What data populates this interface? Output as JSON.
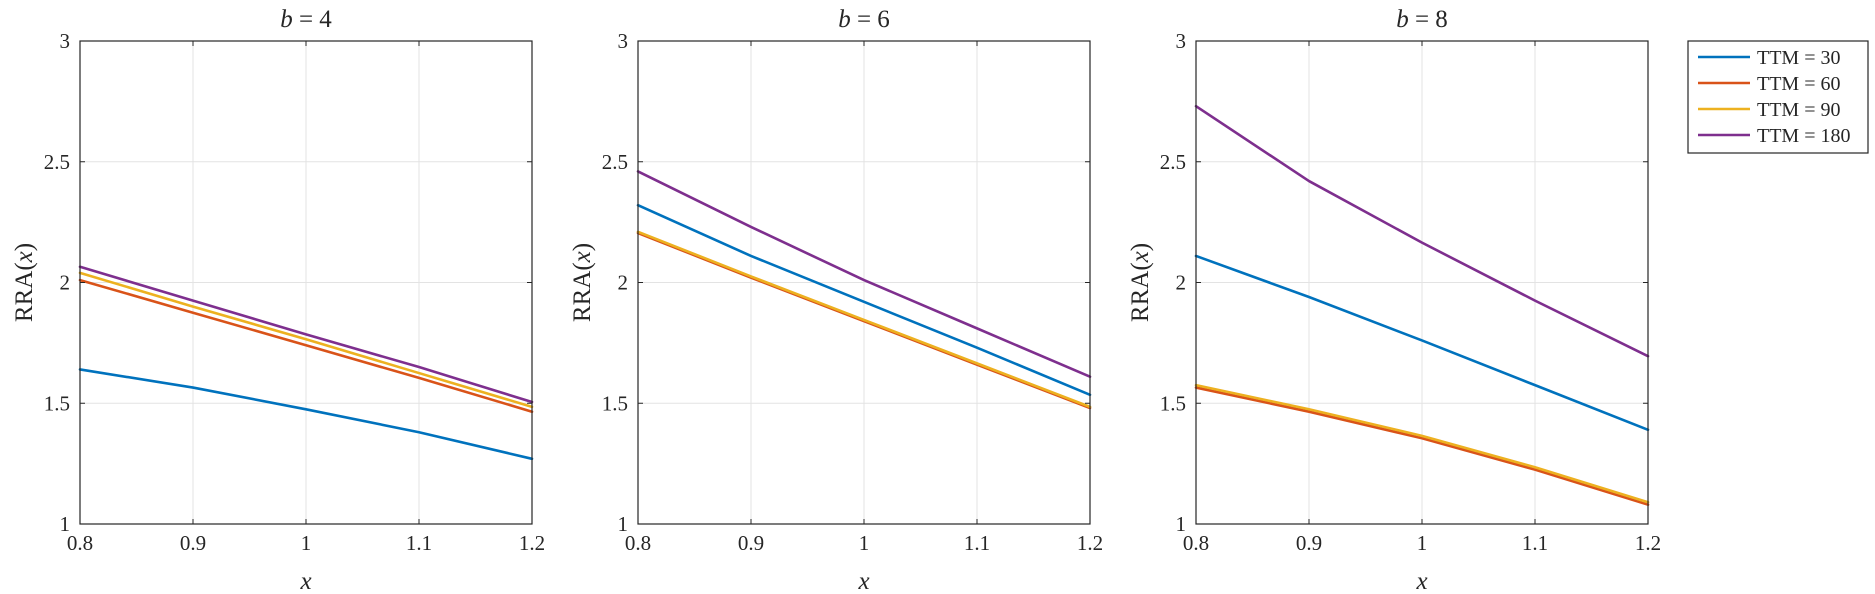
{
  "chart_data": [
    {
      "type": "line",
      "title": "b = 4",
      "title_var": "b",
      "title_eq": " = ",
      "title_val": "4",
      "xlabel": "x",
      "ylabel": "RRA(x)",
      "ylabel_fn": "RRA(",
      "ylabel_var": "x",
      "ylabel_close": ")",
      "xlim": [
        0.8,
        1.2
      ],
      "ylim": [
        1,
        3
      ],
      "xticks": [
        "0.8",
        "0.9",
        "1",
        "1.1",
        "1.2"
      ],
      "yticks": [
        "1",
        "1.5",
        "2",
        "2.5",
        "3"
      ],
      "grid": true,
      "x": [
        0.8,
        0.9,
        1.0,
        1.1,
        1.2
      ],
      "series": [
        {
          "name": "TTM = 30",
          "color": "#0072BD",
          "values": [
            1.64,
            1.565,
            1.475,
            1.38,
            1.27
          ]
        },
        {
          "name": "TTM = 60",
          "color": "#D95319",
          "values": [
            2.01,
            1.875,
            1.74,
            1.605,
            1.465
          ]
        },
        {
          "name": "TTM = 90",
          "color": "#EDB120",
          "values": [
            2.04,
            1.9,
            1.765,
            1.625,
            1.485
          ]
        },
        {
          "name": "TTM = 180",
          "color": "#7E2F8E",
          "values": [
            2.065,
            1.925,
            1.785,
            1.65,
            1.505
          ]
        }
      ]
    },
    {
      "type": "line",
      "title": "b = 6",
      "title_var": "b",
      "title_eq": " = ",
      "title_val": "6",
      "xlabel": "x",
      "ylabel": "RRA(x)",
      "ylabel_fn": "RRA(",
      "ylabel_var": "x",
      "ylabel_close": ")",
      "xlim": [
        0.8,
        1.2
      ],
      "ylim": [
        1,
        3
      ],
      "xticks": [
        "0.8",
        "0.9",
        "1",
        "1.1",
        "1.2"
      ],
      "yticks": [
        "1",
        "1.5",
        "2",
        "2.5",
        "3"
      ],
      "grid": true,
      "x": [
        0.8,
        0.9,
        1.0,
        1.1,
        1.2
      ],
      "series": [
        {
          "name": "TTM = 30",
          "color": "#0072BD",
          "values": [
            2.32,
            2.11,
            1.92,
            1.73,
            1.535
          ]
        },
        {
          "name": "TTM = 60",
          "color": "#D95319",
          "values": [
            2.205,
            2.02,
            1.84,
            1.66,
            1.48
          ]
        },
        {
          "name": "TTM = 90",
          "color": "#EDB120",
          "values": [
            2.21,
            2.025,
            1.845,
            1.665,
            1.485
          ]
        },
        {
          "name": "TTM = 180",
          "color": "#7E2F8E",
          "values": [
            2.46,
            2.23,
            2.01,
            1.81,
            1.61
          ]
        }
      ]
    },
    {
      "type": "line",
      "title": "b = 8",
      "title_var": "b",
      "title_eq": " = ",
      "title_val": "8",
      "xlabel": "x",
      "ylabel": "RRA(x)",
      "ylabel_fn": "RRA(",
      "ylabel_var": "x",
      "ylabel_close": ")",
      "xlim": [
        0.8,
        1.2
      ],
      "ylim": [
        1,
        3
      ],
      "xticks": [
        "0.8",
        "0.9",
        "1",
        "1.1",
        "1.2"
      ],
      "yticks": [
        "1",
        "1.5",
        "2",
        "2.5",
        "3"
      ],
      "grid": true,
      "x": [
        0.8,
        0.9,
        1.0,
        1.1,
        1.2
      ],
      "series": [
        {
          "name": "TTM = 30",
          "color": "#0072BD",
          "values": [
            2.11,
            1.94,
            1.76,
            1.575,
            1.39
          ]
        },
        {
          "name": "TTM = 60",
          "color": "#D95319",
          "values": [
            1.565,
            1.465,
            1.355,
            1.225,
            1.08
          ]
        },
        {
          "name": "TTM = 90",
          "color": "#EDB120",
          "values": [
            1.575,
            1.475,
            1.365,
            1.235,
            1.09
          ]
        },
        {
          "name": "TTM = 180",
          "color": "#7E2F8E",
          "values": [
            2.73,
            2.42,
            2.165,
            1.925,
            1.695
          ]
        }
      ]
    }
  ],
  "legend": {
    "placement": "outside-right",
    "entries": [
      {
        "label": "TTM = 30",
        "color": "#0072BD"
      },
      {
        "label": "TTM = 60",
        "color": "#D95319"
      },
      {
        "label": "TTM = 90",
        "color": "#EDB120"
      },
      {
        "label": "TTM = 180",
        "color": "#7E2F8E"
      }
    ]
  }
}
